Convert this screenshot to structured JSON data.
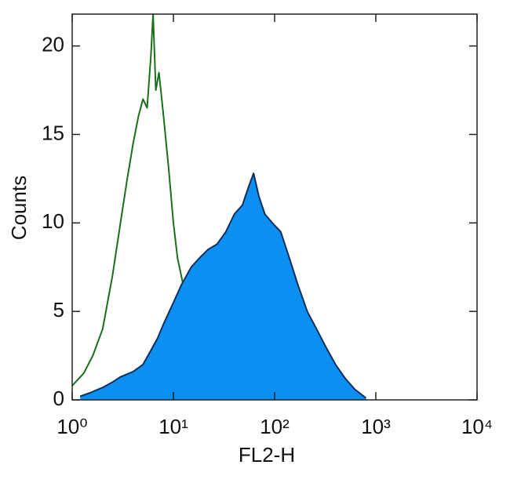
{
  "chart_data": {
    "type": "histogram-overlay",
    "xlabel": "FL2-H",
    "ylabel": "Counts",
    "log_x": true,
    "xlim": [
      1,
      10000
    ],
    "ylim": [
      0,
      21.8
    ],
    "xticks": [
      {
        "value": 1,
        "label": "10⁰"
      },
      {
        "value": 10,
        "label": "10¹"
      },
      {
        "value": 100,
        "label": "10²"
      },
      {
        "value": 1000,
        "label": "10³"
      },
      {
        "value": 10000,
        "label": "10⁴"
      }
    ],
    "yticks": [
      0,
      5,
      10,
      15,
      20
    ],
    "series": [
      {
        "name": null,
        "color": "#1a6f1a",
        "fill": null,
        "x": [
          1,
          1.3,
          1.6,
          2,
          2.5,
          3,
          3.5,
          4,
          4.5,
          5,
          5.5,
          6,
          6.3,
          6.7,
          7.2,
          8,
          9,
          10,
          11,
          12.5,
          15,
          18,
          22,
          30,
          40,
          60,
          100,
          200,
          400,
          700
        ],
        "values": [
          0.8,
          1.5,
          2.5,
          4,
          7,
          10,
          12.5,
          14.5,
          16,
          17,
          16.5,
          19.5,
          21.8,
          17.5,
          18.5,
          16,
          13,
          10,
          8,
          6.5,
          5,
          4,
          3,
          2,
          1.2,
          1,
          0.7,
          0.4,
          0.2,
          0.1
        ]
      },
      {
        "name": null,
        "color": "#0b2f5a",
        "fill": "#0b8ff0",
        "x": [
          1.2,
          1.5,
          2,
          2.5,
          3,
          4,
          5,
          6,
          7,
          8,
          10,
          12,
          15,
          18,
          22,
          27,
          33,
          40,
          48,
          55,
          62,
          70,
          80,
          95,
          115,
          140,
          170,
          210,
          260,
          320,
          400,
          500,
          620,
          800
        ],
        "values": [
          0.2,
          0.4,
          0.7,
          1,
          1.3,
          1.6,
          2,
          2.8,
          3.5,
          4.3,
          5.5,
          6.5,
          7.5,
          8,
          8.5,
          8.8,
          9.5,
          10.5,
          11,
          12,
          12.8,
          11.5,
          10.5,
          10,
          9.5,
          8,
          6.5,
          5,
          4,
          3,
          2,
          1.2,
          0.6,
          0.1
        ]
      }
    ]
  }
}
